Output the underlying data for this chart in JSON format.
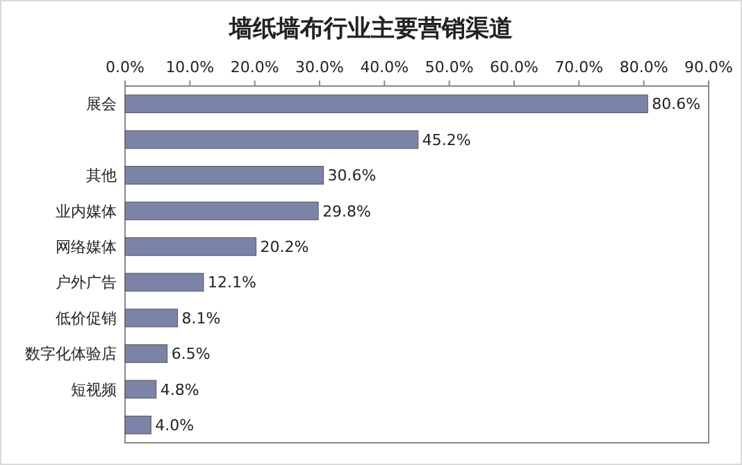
{
  "chart_data": {
    "type": "bar",
    "orientation": "horizontal",
    "title": "墙纸墙布行业主要营销渠道",
    "categories": [
      "展会",
      null,
      "其他",
      "业内媒体",
      "网络媒体",
      "户外广告",
      "低价促销",
      "数字化体验店",
      "短视频",
      null
    ],
    "values": [
      80.6,
      45.2,
      30.6,
      29.8,
      20.2,
      12.1,
      8.1,
      6.5,
      4.8,
      4.0
    ],
    "value_labels": [
      "80.6%",
      "45.2%",
      "30.6%",
      "29.8%",
      "20.2%",
      "12.1%",
      "8.1%",
      "6.5%",
      "4.8%",
      "4.0%"
    ],
    "color": "#7b83a8",
    "xlim": [
      0,
      90
    ],
    "xticks": [
      {
        "value": 0,
        "label": "0.0%"
      },
      {
        "value": 10,
        "label": "10.0%"
      },
      {
        "value": 20,
        "label": "20.0%"
      },
      {
        "value": 30,
        "label": "30.0%"
      },
      {
        "value": 40,
        "label": "40.0%"
      },
      {
        "value": 50,
        "label": "50.0%"
      },
      {
        "value": 60,
        "label": "60.0%"
      },
      {
        "value": 70,
        "label": "70.0%"
      },
      {
        "value": 80,
        "label": "80.0%"
      },
      {
        "value": 90,
        "label": "90.0%"
      }
    ],
    "grid": false
  }
}
